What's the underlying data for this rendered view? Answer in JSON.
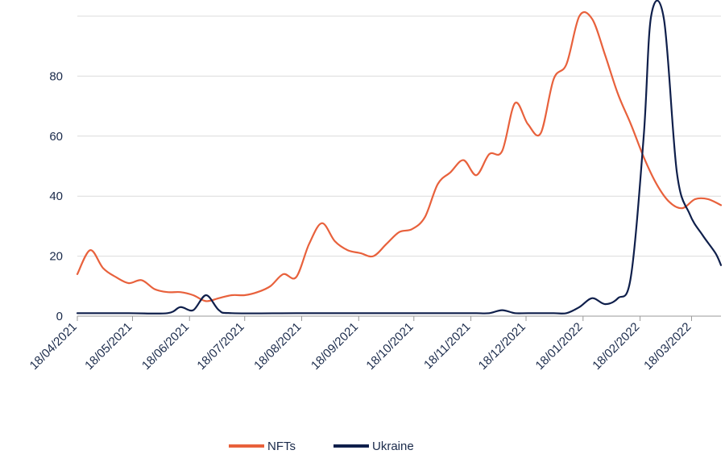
{
  "chart_data": {
    "type": "line",
    "title": "",
    "xlabel": "",
    "ylabel": "",
    "ylim": [
      0,
      100
    ],
    "y_ticks": [
      0,
      20,
      40,
      60,
      80
    ],
    "x_ticks": [
      "18/04/2021",
      "18/05/2021",
      "18/06/2021",
      "18/07/2021",
      "18/08/2021",
      "18/09/2021",
      "18/10/2021",
      "18/11/2021",
      "18/12/2021",
      "18/01/2022",
      "18/02/2022",
      "18/03/2022"
    ],
    "grid": "horizontal",
    "legend_position": "bottom",
    "series": [
      {
        "name": "NFTs",
        "color": "#e8613c",
        "points": [
          [
            "2021-04-18",
            14
          ],
          [
            "2021-04-25",
            22
          ],
          [
            "2021-05-02",
            16
          ],
          [
            "2021-05-09",
            13
          ],
          [
            "2021-05-16",
            11
          ],
          [
            "2021-05-23",
            12
          ],
          [
            "2021-05-30",
            9
          ],
          [
            "2021-06-06",
            8
          ],
          [
            "2021-06-13",
            8
          ],
          [
            "2021-06-20",
            7
          ],
          [
            "2021-06-27",
            5
          ],
          [
            "2021-07-04",
            6
          ],
          [
            "2021-07-11",
            7
          ],
          [
            "2021-07-18",
            7
          ],
          [
            "2021-07-25",
            8
          ],
          [
            "2021-08-01",
            10
          ],
          [
            "2021-08-08",
            14
          ],
          [
            "2021-08-15",
            13
          ],
          [
            "2021-08-22",
            24
          ],
          [
            "2021-08-29",
            31
          ],
          [
            "2021-09-05",
            25
          ],
          [
            "2021-09-12",
            22
          ],
          [
            "2021-09-19",
            21
          ],
          [
            "2021-09-26",
            20
          ],
          [
            "2021-10-03",
            24
          ],
          [
            "2021-10-10",
            28
          ],
          [
            "2021-10-17",
            29
          ],
          [
            "2021-10-24",
            33
          ],
          [
            "2021-10-31",
            44
          ],
          [
            "2021-11-07",
            48
          ],
          [
            "2021-11-14",
            52
          ],
          [
            "2021-11-21",
            47
          ],
          [
            "2021-11-28",
            54
          ],
          [
            "2021-12-05",
            55
          ],
          [
            "2021-12-12",
            71
          ],
          [
            "2021-12-19",
            64
          ],
          [
            "2021-12-26",
            61
          ],
          [
            "2022-01-02",
            79
          ],
          [
            "2022-01-09",
            84
          ],
          [
            "2022-01-16",
            100
          ],
          [
            "2022-01-23",
            99
          ],
          [
            "2022-01-30",
            87
          ],
          [
            "2022-02-06",
            74
          ],
          [
            "2022-02-13",
            64
          ],
          [
            "2022-02-20",
            53
          ],
          [
            "2022-02-27",
            44
          ],
          [
            "2022-03-06",
            38
          ],
          [
            "2022-03-13",
            36
          ],
          [
            "2022-03-20",
            39
          ],
          [
            "2022-03-27",
            39
          ],
          [
            "2022-04-03",
            37
          ]
        ]
      },
      {
        "name": "Ukraine",
        "color": "#0f1f4b",
        "points": [
          [
            "2021-04-18",
            1
          ],
          [
            "2021-05-16",
            1
          ],
          [
            "2021-06-06",
            1
          ],
          [
            "2021-06-13",
            3
          ],
          [
            "2021-06-20",
            2
          ],
          [
            "2021-06-27",
            7
          ],
          [
            "2021-07-04",
            2
          ],
          [
            "2021-07-11",
            1
          ],
          [
            "2021-08-15",
            1
          ],
          [
            "2021-09-19",
            1
          ],
          [
            "2021-10-24",
            1
          ],
          [
            "2021-11-14",
            1
          ],
          [
            "2021-11-21",
            1
          ],
          [
            "2021-11-28",
            1
          ],
          [
            "2021-12-05",
            2
          ],
          [
            "2021-12-12",
            1
          ],
          [
            "2021-12-19",
            1
          ],
          [
            "2022-01-02",
            1
          ],
          [
            "2022-01-09",
            1
          ],
          [
            "2022-01-16",
            3
          ],
          [
            "2022-01-23",
            6
          ],
          [
            "2022-01-30",
            4
          ],
          [
            "2022-02-06",
            6
          ],
          [
            "2022-02-13",
            13
          ],
          [
            "2022-02-20",
            60
          ],
          [
            "2022-02-24",
            100
          ],
          [
            "2022-03-03",
            99
          ],
          [
            "2022-03-10",
            48
          ],
          [
            "2022-03-17",
            34
          ],
          [
            "2022-03-24",
            27
          ],
          [
            "2022-03-31",
            21
          ],
          [
            "2022-04-03",
            17
          ]
        ]
      }
    ]
  }
}
